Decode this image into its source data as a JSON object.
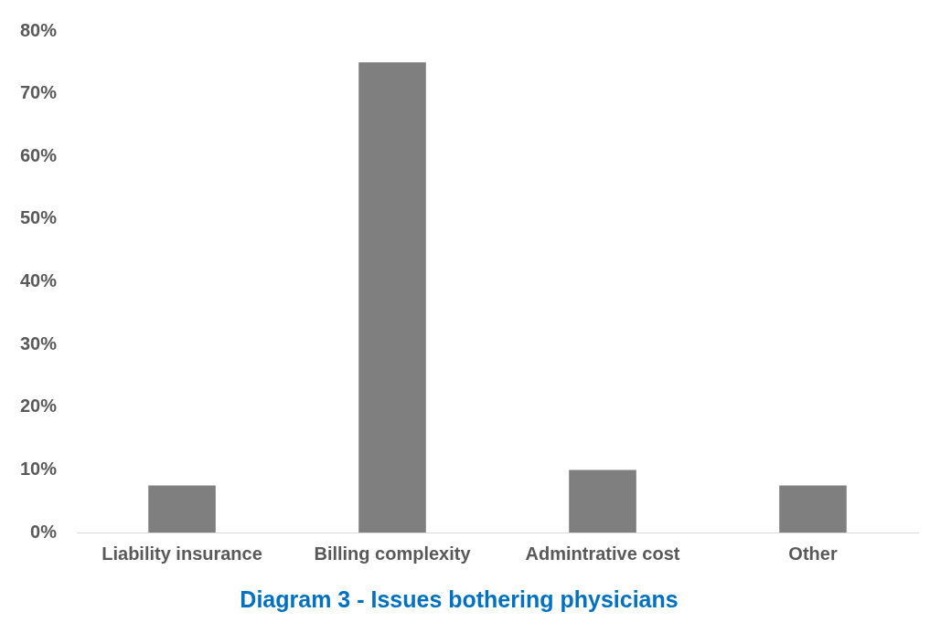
{
  "chart_data": {
    "type": "bar",
    "title": "Diagram 3 - Issues bothering physicians",
    "categories": [
      "Liability insurance",
      "Billing complexity",
      "Admintrative cost",
      "Other"
    ],
    "values": [
      7.5,
      75,
      10,
      7.5
    ],
    "color": "#7f7f7f",
    "ylim": [
      0,
      80
    ],
    "yticks": [
      {
        "value": 0,
        "label": "0%"
      },
      {
        "value": 10,
        "label": "10%"
      },
      {
        "value": 20,
        "label": "20%"
      },
      {
        "value": 30,
        "label": "30%"
      },
      {
        "value": 40,
        "label": "40%"
      },
      {
        "value": 50,
        "label": "50%"
      },
      {
        "value": 60,
        "label": "60%"
      },
      {
        "value": 70,
        "label": "70%"
      },
      {
        "value": 80,
        "label": "80%"
      }
    ],
    "grid": false,
    "legend": false
  }
}
